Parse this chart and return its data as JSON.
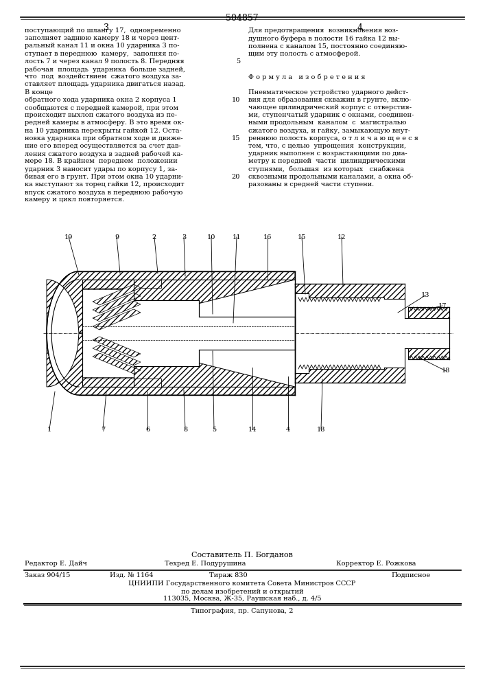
{
  "page_number": "504857",
  "col_left": "3",
  "col_right": "4",
  "left_text_lines": [
    "поступающий по шлангу 17,  одновременно",
    "заполняет заднюю камеру 18 и через цент-",
    "ральный канал 11 и окна 10 ударника 3 по-",
    "ступает в переднюю  камеру,  заполняя по-",
    "лость 7 и через канал 9 полость 8. Передняя",
    "рабочая  площадь  ударника  больше задней,",
    "что  под  воздействием  сжатого воздуха за-",
    "ставляет площадь ударника двигаться назад.",
    "В конце",
    "обратного хода ударника окна 2 корпуса 1",
    "сообщаются с передней камерой, при этом",
    "происходит выхлоп сжатого воздуха из пе-",
    "редней камеры в атмосферу. В это время ок-",
    "на 10 ударника перекрыты гайкой 12. Оста-",
    "новка ударника при обратном ходе и движе-",
    "ние его вперед осуществляется за счет дав-",
    "ления сжатого воздуха в задней рабочей ка-",
    "мере 18. В крайнем  переднем  положении",
    "ударник 3 наносит удары по корпусу 1, за-",
    "бивая его в грунт. При этом окна 10 ударни-",
    "ка выступают за торец гайки 12, происходит",
    "впуск сжатого воздуха в переднюю рабочую",
    "камеру и цикл повторяется."
  ],
  "right_text_lines": [
    "Для предотвращения  возникновения воз-",
    "душного буфера в полости 16 гайка 12 вы-",
    "полнена с каналом 15, постоянно соединяю-",
    "щим эту полость с атмосферой.",
    "",
    "",
    "Ф о р м у л а   и з о б р е т е н и я",
    "",
    "Пневматическое устройство ударного дейст-",
    "вия для образования скважин в грунте, вклю-",
    "чающее цилиндрический корпус с отверстия-",
    "ми, ступенчатый ударник с окнами, соединен-",
    "ными продольным  каналом  с  магистралью",
    "сжатого воздуха, и гайку, замыкающую внут-",
    "реннюю полость корпуса, о т л и ч а ю щ е е с я",
    "тем, что, с целью  упрощения  конструкции,",
    "ударник выполнен с возрастающими по диа-",
    "метру к передней  части  цилиндрическими",
    "ступнями,  большая  из которых   снабжена",
    "сквозными продольными каналами, а окна об-",
    "разованы в средней части ступени."
  ],
  "line_numbers": [
    [
      5,
      4
    ],
    [
      10,
      9
    ],
    [
      15,
      14
    ],
    [
      20,
      19
    ]
  ],
  "footer_composer": "Составитель П. Богданов",
  "footer_editor": "Редактор Е. Дайч",
  "footer_tech": "Техред Е. Подурушина",
  "footer_corrector": "Корректор Е. Рожкова",
  "footer_order": "Заказ 904/15",
  "footer_pub": "Изд. № 1164",
  "footer_circulation": "Тираж 830",
  "footer_subscription": "Подписное",
  "footer_org": "ЦНИИПИ Государственного комитета Совета Министров СССР",
  "footer_org2": "по делам изобретений и открытий",
  "footer_address": "113035, Москва, Ж-35, Раушская наб., д. 4/5",
  "footer_typography": "Типография, пр. Сапунова, 2",
  "bg_color": "#ffffff",
  "text_color": "#000000"
}
